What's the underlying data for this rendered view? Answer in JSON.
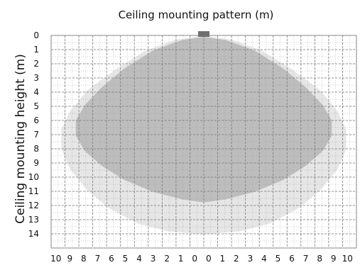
{
  "chart_data": {
    "type": "area",
    "title": "Ceiling mounting pattern (m)",
    "xlabel": "",
    "ylabel": "Ceiling mounting height (m)",
    "x_tick_labels": [
      "10",
      "9",
      "8",
      "7",
      "6",
      "5",
      "4",
      "3",
      "2",
      "1",
      "0",
      "0",
      "1",
      "2",
      "3",
      "4",
      "5",
      "6",
      "7",
      "8",
      "9",
      "10"
    ],
    "y_tick_labels": [
      "0",
      "1",
      "2",
      "3",
      "4",
      "5",
      "6",
      "7",
      "8",
      "9",
      "10",
      "11",
      "12",
      "13",
      "14"
    ],
    "x_range": [
      -10.5,
      10.5
    ],
    "y_range": [
      0,
      14
    ],
    "y_inverted": true,
    "grid": true,
    "sensor_marker_x": 0,
    "series": [
      {
        "color": "#e6e6e6",
        "points": [
          [
            0,
            0
          ],
          [
            2,
            0.3
          ],
          [
            4,
            1.0
          ],
          [
            6,
            2.2
          ],
          [
            8,
            3.6
          ],
          [
            9.2,
            5.0
          ],
          [
            9.8,
            6.2
          ],
          [
            9.8,
            7.5
          ],
          [
            9.2,
            8.8
          ],
          [
            8.0,
            10.2
          ],
          [
            6.5,
            11.4
          ],
          [
            4.5,
            12.4
          ],
          [
            2.5,
            12.9
          ],
          [
            0,
            13.1
          ],
          [
            -2.5,
            12.9
          ],
          [
            -4.5,
            12.4
          ],
          [
            -6.5,
            11.4
          ],
          [
            -8.0,
            10.2
          ],
          [
            -9.2,
            8.8
          ],
          [
            -9.8,
            7.5
          ],
          [
            -9.8,
            6.2
          ],
          [
            -9.2,
            5.0
          ],
          [
            -8,
            3.6
          ],
          [
            -6,
            2.2
          ],
          [
            -4,
            1.0
          ],
          [
            -2,
            0.3
          ]
        ]
      },
      {
        "color": "#bdbdbd",
        "points": [
          [
            0,
            0.1
          ],
          [
            1.5,
            0.3
          ],
          [
            3.5,
            1.0
          ],
          [
            5.5,
            2.2
          ],
          [
            7,
            3.4
          ],
          [
            8.2,
            4.6
          ],
          [
            8.8,
            5.6
          ],
          [
            8.8,
            6.6
          ],
          [
            8.2,
            7.6
          ],
          [
            7,
            8.6
          ],
          [
            5.5,
            9.5
          ],
          [
            3.5,
            10.3
          ],
          [
            1.5,
            10.8
          ],
          [
            0,
            11.0
          ],
          [
            -1.5,
            10.8
          ],
          [
            -3.5,
            10.3
          ],
          [
            -5.5,
            9.5
          ],
          [
            -7,
            8.6
          ],
          [
            -8.2,
            7.6
          ],
          [
            -8.8,
            6.6
          ],
          [
            -8.8,
            5.6
          ],
          [
            -8.2,
            4.6
          ],
          [
            -7,
            3.4
          ],
          [
            -5.5,
            2.2
          ],
          [
            -3.5,
            1.0
          ],
          [
            -1.5,
            0.3
          ]
        ]
      }
    ]
  }
}
